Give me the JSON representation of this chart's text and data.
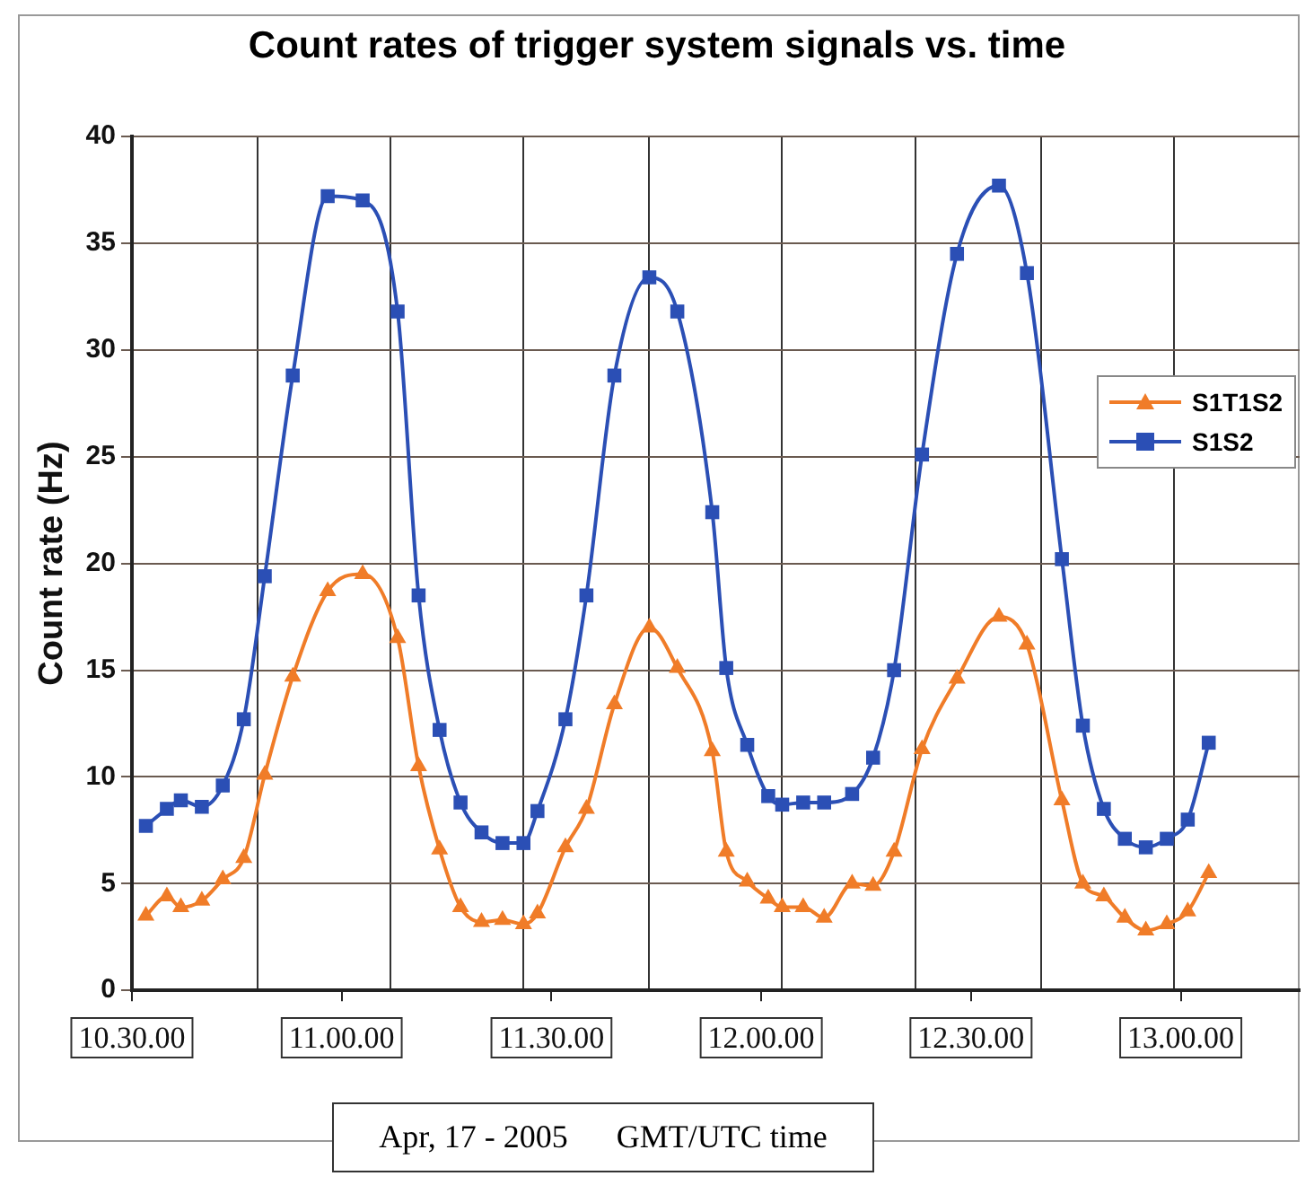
{
  "chart_data": {
    "type": "line",
    "title": "Count rates of trigger system signals vs. time",
    "xlabel": "Apr, 17 - 2005      GMT/UTC time",
    "ylabel": "Count rate (Hz)",
    "x": [
      "2005-04-17T10:32",
      "2005-04-17T10:35",
      "2005-04-17T10:37",
      "2005-04-17T10:40",
      "2005-04-17T10:43",
      "2005-04-17T10:46",
      "2005-04-17T10:49",
      "2005-04-17T10:53",
      "2005-04-17T10:58",
      "2005-04-17T11:03",
      "2005-04-17T11:08",
      "2005-04-17T11:11",
      "2005-04-17T11:14",
      "2005-04-17T11:17",
      "2005-04-17T11:20",
      "2005-04-17T11:23",
      "2005-04-17T11:26",
      "2005-04-17T11:28",
      "2005-04-17T11:32",
      "2005-04-17T11:35",
      "2005-04-17T11:39",
      "2005-04-17T11:44",
      "2005-04-17T11:48",
      "2005-04-17T11:53",
      "2005-04-17T11:55",
      "2005-04-17T11:58",
      "2005-04-17T12:01",
      "2005-04-17T12:03",
      "2005-04-17T12:06",
      "2005-04-17T12:09",
      "2005-04-17T12:13",
      "2005-04-17T12:16",
      "2005-04-17T12:19",
      "2005-04-17T12:23",
      "2005-04-17T12:28",
      "2005-04-17T12:34",
      "2005-04-17T12:38",
      "2005-04-17T12:43",
      "2005-04-17T12:46",
      "2005-04-17T12:49",
      "2005-04-17T12:52",
      "2005-04-17T12:55",
      "2005-04-17T12:58",
      "2005-04-17T13:01",
      "2005-04-17T13:04"
    ],
    "series": [
      {
        "name": "S1T1S2",
        "color": "#f07c28",
        "marker": "triangle",
        "values": [
          3.5,
          4.4,
          3.9,
          4.2,
          5.2,
          6.2,
          10.1,
          14.7,
          18.7,
          19.5,
          16.5,
          10.5,
          6.6,
          3.9,
          3.2,
          3.3,
          3.1,
          3.6,
          6.7,
          8.5,
          13.4,
          17.0,
          15.1,
          11.2,
          6.5,
          5.1,
          4.3,
          3.9,
          3.9,
          3.4,
          5.0,
          4.9,
          6.5,
          11.3,
          14.6,
          17.5,
          16.2,
          8.9,
          5.0,
          4.4,
          3.4,
          2.8,
          3.1,
          3.7,
          5.5
        ]
      },
      {
        "name": "S1S2",
        "color": "#2b4fb5",
        "marker": "square",
        "values": [
          7.7,
          8.5,
          8.9,
          8.6,
          9.6,
          12.7,
          19.4,
          28.8,
          37.2,
          37.0,
          31.8,
          18.5,
          12.2,
          8.8,
          7.4,
          6.9,
          6.9,
          8.4,
          12.7,
          18.5,
          28.8,
          33.4,
          31.8,
          22.4,
          15.1,
          11.5,
          9.1,
          8.7,
          8.8,
          8.8,
          9.2,
          10.9,
          15.0,
          25.1,
          34.5,
          37.7,
          33.6,
          20.2,
          12.4,
          8.5,
          7.1,
          6.7,
          7.1,
          8.0,
          11.6
        ]
      }
    ],
    "xlim": [
      "2005-04-17T10:30",
      "2005-04-17T13:17"
    ],
    "xticks": [
      {
        "value": "2005-04-17T10:30",
        "label": "10.30.00"
      },
      {
        "value": "2005-04-17T10:48",
        "label": null
      },
      {
        "value": "2005-04-17T11:00",
        "label": "11.00.00"
      },
      {
        "value": "2005-04-17T11:07",
        "label": null
      },
      {
        "value": "2005-04-17T11:26",
        "label": null
      },
      {
        "value": "2005-04-17T11:30",
        "label": "11.30.00"
      },
      {
        "value": "2005-04-17T11:44",
        "label": null
      },
      {
        "value": "2005-04-17T12:00",
        "label": "12.00.00"
      },
      {
        "value": "2005-04-17T12:03",
        "label": null
      },
      {
        "value": "2005-04-17T12:22",
        "label": null
      },
      {
        "value": "2005-04-17T12:30",
        "label": "12.30.00"
      },
      {
        "value": "2005-04-17T12:40",
        "label": null
      },
      {
        "value": "2005-04-17T12:59",
        "label": null
      },
      {
        "value": "2005-04-17T13:00",
        "label": "13.00.00"
      }
    ],
    "ylim": [
      0,
      40
    ],
    "yticks": [
      0,
      5,
      10,
      15,
      20,
      25,
      30,
      35,
      40
    ],
    "grid": true,
    "legend": "top right",
    "line_style": "solid"
  }
}
